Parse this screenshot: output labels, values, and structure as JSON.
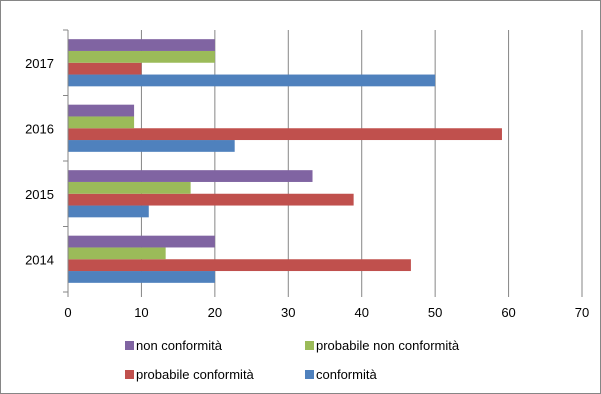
{
  "chart_data": {
    "type": "bar",
    "orientation": "horizontal",
    "title": "",
    "xlabel": "",
    "ylabel": "",
    "categories": [
      "2014",
      "2015",
      "2016",
      "2017"
    ],
    "series": [
      {
        "name": "conformità",
        "color": "#4f81bd",
        "values": [
          20,
          11,
          22.7,
          50
        ]
      },
      {
        "name": "probabile conformità",
        "color": "#c0504d",
        "values": [
          46.7,
          38.9,
          59.1,
          10
        ]
      },
      {
        "name": "probabile non conformità",
        "color": "#9bbb59",
        "values": [
          13.3,
          16.7,
          9,
          20
        ]
      },
      {
        "name": "non conformità",
        "color": "#8064a2",
        "values": [
          20,
          33.3,
          9,
          20
        ]
      }
    ],
    "xlim": [
      0,
      70
    ],
    "xticks": [
      0,
      10,
      20,
      30,
      40,
      50,
      60,
      70
    ],
    "grid": "vertical major gridlines",
    "legend_position": "bottom",
    "legend_order": [
      "non conformità",
      "probabile non conformità",
      "probabile conformità",
      "conformità"
    ]
  }
}
